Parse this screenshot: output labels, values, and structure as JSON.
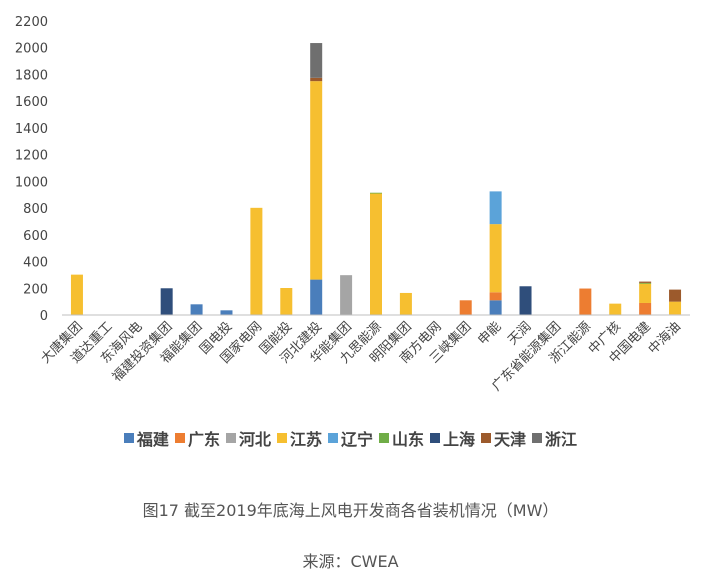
{
  "chart_data": {
    "type": "bar",
    "stacked": true,
    "title": "",
    "xlabel": "",
    "ylabel": "",
    "ylim": [
      0,
      2200
    ],
    "yticks": [
      0,
      200,
      400,
      600,
      800,
      1000,
      1200,
      1400,
      1600,
      1800,
      2000,
      2200
    ],
    "grid": false,
    "legend_position": "bottom",
    "categories": [
      "大唐集团",
      "道达重工",
      "东海风电",
      "福建投资集团",
      "福能集团",
      "国电投",
      "国家电网",
      "国能投",
      "河北建投",
      "华能集团",
      "九思能源",
      "明阳集团",
      "南方电网",
      "三峡集团",
      "申能",
      "天润",
      "广东省能源集团",
      "浙江能源",
      "中广核",
      "中国电建",
      "中海油"
    ],
    "series": [
      {
        "name": "福建",
        "color": "#4a7ebb",
        "values": [
          0,
          0,
          0,
          0,
          80,
          35,
          0,
          0,
          265,
          0,
          0,
          0,
          0,
          0,
          110,
          0,
          0,
          0,
          0,
          0,
          0
        ]
      },
      {
        "name": "广东",
        "color": "#ed7d31",
        "values": [
          0,
          0,
          0,
          0,
          0,
          0,
          0,
          0,
          0,
          0,
          0,
          0,
          0,
          110,
          60,
          0,
          0,
          198,
          0,
          90,
          5
        ]
      },
      {
        "name": "河北",
        "color": "#a5a5a5",
        "values": [
          0,
          0,
          0,
          0,
          0,
          0,
          0,
          0,
          0,
          298,
          0,
          0,
          0,
          0,
          0,
          0,
          0,
          0,
          0,
          0,
          0
        ]
      },
      {
        "name": "江苏",
        "color": "#f6bf30",
        "values": [
          302,
          3,
          0,
          0,
          0,
          0,
          802,
          202,
          1485,
          0,
          910,
          165,
          3,
          0,
          510,
          0,
          0,
          0,
          85,
          145,
          95
        ]
      },
      {
        "name": "辽宁",
        "color": "#5ba3d9",
        "values": [
          0,
          0,
          0,
          0,
          0,
          0,
          0,
          0,
          0,
          0,
          0,
          0,
          0,
          0,
          245,
          0,
          0,
          0,
          0,
          0,
          0
        ]
      },
      {
        "name": "山东",
        "color": "#70ad47",
        "values": [
          0,
          0,
          0,
          0,
          0,
          0,
          0,
          0,
          0,
          0,
          5,
          0,
          0,
          0,
          0,
          0,
          0,
          0,
          0,
          5,
          0
        ]
      },
      {
        "name": "上海",
        "color": "#2f4e7b",
        "values": [
          0,
          0,
          0,
          200,
          0,
          0,
          0,
          0,
          0,
          0,
          0,
          0,
          0,
          0,
          0,
          215,
          0,
          0,
          0,
          0,
          0
        ]
      },
      {
        "name": "天津",
        "color": "#9c5a2c",
        "values": [
          0,
          0,
          0,
          0,
          0,
          0,
          0,
          0,
          25,
          0,
          0,
          0,
          0,
          0,
          0,
          0,
          0,
          0,
          0,
          10,
          90
        ]
      },
      {
        "name": "浙江",
        "color": "#6f6f6f",
        "values": [
          0,
          0,
          0,
          0,
          0,
          0,
          0,
          0,
          260,
          0,
          0,
          0,
          0,
          0,
          0,
          0,
          0,
          0,
          0,
          0,
          0
        ]
      }
    ],
    "caption": "图17  截至2019年底海上风电开发商各省装机情况（MW）",
    "source": "来源：CWEA"
  }
}
